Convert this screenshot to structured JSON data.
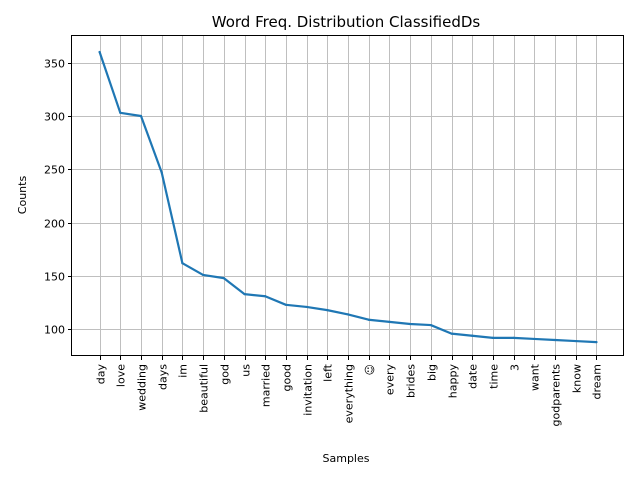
{
  "chart_data": {
    "type": "line",
    "title": "Word Freq. Distribution ClassifiedDs",
    "xlabel": "Samples",
    "ylabel": "Counts",
    "categories": [
      "day",
      "love",
      "wedding",
      "days",
      "im",
      "beautiful",
      "god",
      "us",
      "married",
      "good",
      "invitation",
      "left",
      "everything",
      "☺",
      "every",
      "brides",
      "big",
      "happy",
      "date",
      "time",
      "3",
      "want",
      "godparents",
      "know",
      "dream"
    ],
    "series": [
      {
        "values": [
          360,
          303,
          300,
          247,
          162,
          151,
          148,
          133,
          131,
          123,
          121,
          118,
          114,
          109,
          107,
          105,
          104,
          96,
          94,
          92,
          92,
          91,
          90,
          89,
          88
        ],
        "color": "#1f77b4"
      }
    ],
    "ylim": [
      75,
      375
    ],
    "yticks": [
      100,
      150,
      200,
      250,
      300,
      350
    ],
    "grid": true
  }
}
